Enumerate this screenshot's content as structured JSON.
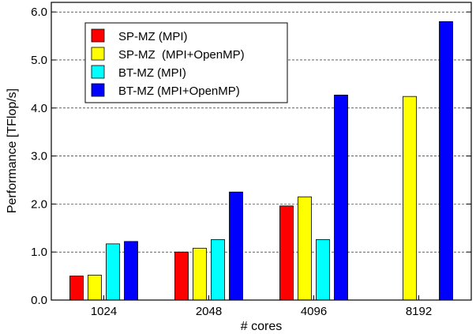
{
  "chart_data": {
    "type": "bar",
    "xlabel": "# cores",
    "ylabel": "Performance [TFlop/s]",
    "categories": [
      "1024",
      "2048",
      "4096",
      "8192"
    ],
    "ylim": [
      0,
      6.2
    ],
    "yticks": [
      "0.0",
      "1.0",
      "2.0",
      "3.0",
      "4.0",
      "5.0",
      "6.0"
    ],
    "ytick_values": [
      0,
      1,
      2,
      3,
      4,
      5,
      6
    ],
    "grid": "horizontal-dashed",
    "legend_position": "top-left",
    "series": [
      {
        "name": "SP-MZ (MPI)",
        "color": "#ff0000",
        "values": [
          0.5,
          1.0,
          1.96,
          null
        ]
      },
      {
        "name": "SP-MZ  (MPI+OpenMP)",
        "color": "#ffff00",
        "values": [
          0.52,
          1.08,
          2.15,
          4.24
        ]
      },
      {
        "name": "BT-MZ (MPI)",
        "color": "#00ffff",
        "values": [
          1.17,
          1.26,
          1.26,
          null
        ]
      },
      {
        "name": "BT-MZ (MPI+OpenMP)",
        "color": "#0000ff",
        "values": [
          1.22,
          2.25,
          4.27,
          5.8
        ]
      }
    ]
  }
}
